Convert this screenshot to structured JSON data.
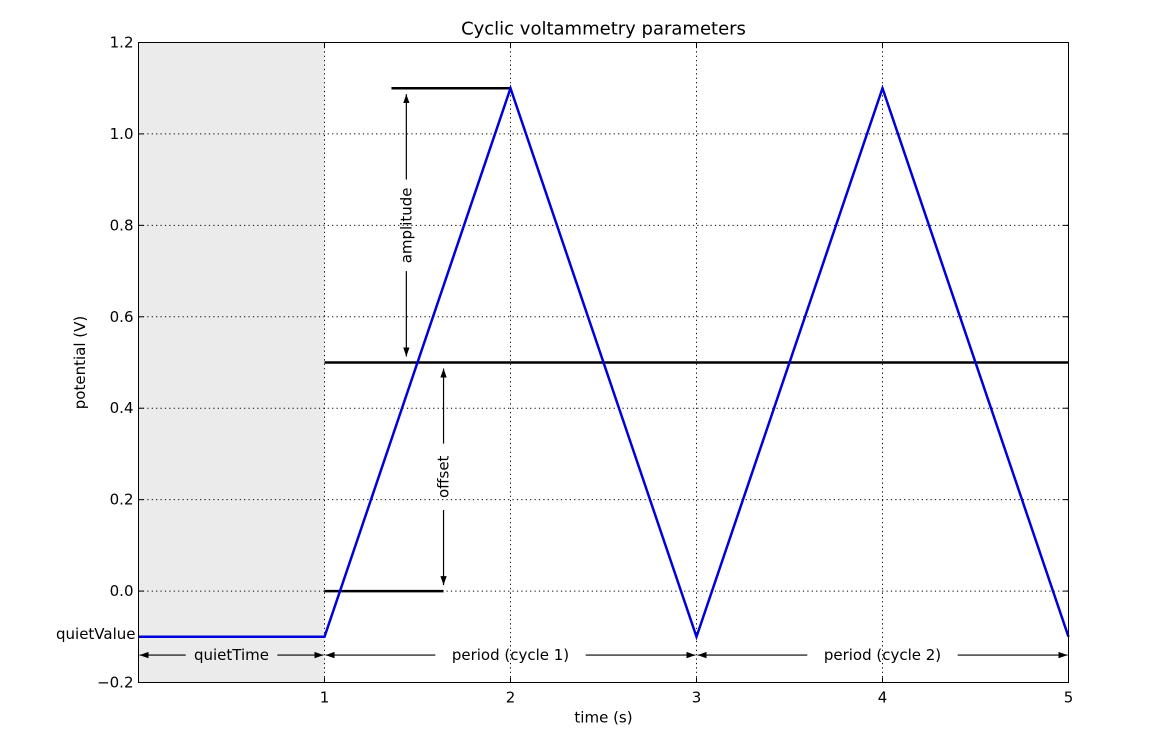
{
  "chart_data": {
    "type": "line",
    "title": "Cyclic voltammetry parameters",
    "xlabel": "time (s)",
    "ylabel": "potential (V)",
    "xlim": [
      0,
      5
    ],
    "ylim": [
      -0.2,
      1.2
    ],
    "grid": true,
    "x_ticks": [
      {
        "value": 1,
        "label": "1"
      },
      {
        "value": 2,
        "label": "2"
      },
      {
        "value": 3,
        "label": "3"
      },
      {
        "value": 4,
        "label": "4"
      },
      {
        "value": 5,
        "label": "5"
      }
    ],
    "y_ticks": [
      {
        "value": -0.2,
        "label": "−0.2"
      },
      {
        "value": 0.0,
        "label": "0.0"
      },
      {
        "value": 0.2,
        "label": "0.2"
      },
      {
        "value": 0.4,
        "label": "0.4"
      },
      {
        "value": 0.6,
        "label": "0.6"
      },
      {
        "value": 0.8,
        "label": "0.8"
      },
      {
        "value": 1.0,
        "label": "1.0"
      },
      {
        "value": 1.2,
        "label": "1.2"
      }
    ],
    "shaded_region": {
      "x": [
        0,
        1
      ],
      "color": "#ebebeb"
    },
    "series": [
      {
        "color": "#0000dd",
        "x": [
          0,
          1,
          2,
          3,
          4,
          5
        ],
        "y": [
          -0.1,
          -0.1,
          1.1,
          -0.1,
          1.1,
          -0.1
        ]
      }
    ],
    "reference_lines": [
      {
        "x": [
          1.0,
          5.0
        ],
        "y": 0.5
      },
      {
        "x": [
          1.0,
          1.64
        ],
        "y": 0.0
      },
      {
        "x": [
          1.36,
          2.0
        ],
        "y": 1.1
      }
    ],
    "annotations": [
      {
        "label": "amplitude",
        "orientation": "vertical",
        "at": 1.44,
        "from": 0.5,
        "to": 1.1
      },
      {
        "label": "offset",
        "orientation": "vertical",
        "at": 1.64,
        "from": 0.0,
        "to": 0.5
      },
      {
        "label": "quietTime",
        "orientation": "horizontal",
        "at": -0.14,
        "from": 0,
        "to": 1
      },
      {
        "label": "period (cycle 1)",
        "orientation": "horizontal",
        "at": -0.14,
        "from": 1,
        "to": 3
      },
      {
        "label": "period (cycle 2)",
        "orientation": "horizontal",
        "at": -0.14,
        "from": 3,
        "to": 5
      }
    ],
    "side_labels": [
      {
        "label": "quietValue",
        "y": -0.1
      }
    ]
  }
}
